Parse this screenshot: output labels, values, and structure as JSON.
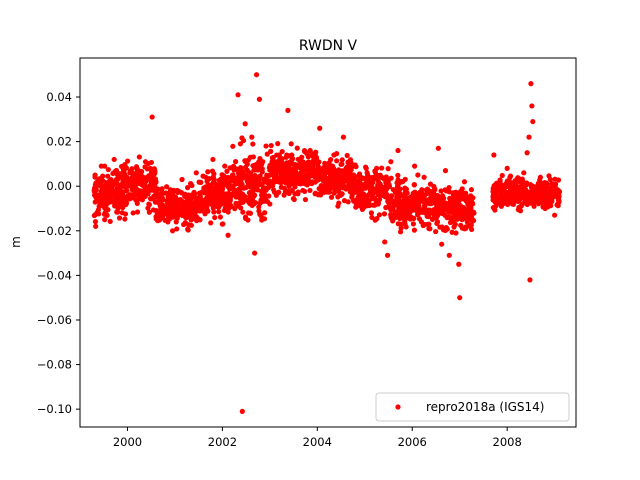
{
  "chart_data": {
    "type": "scatter",
    "title": "RWDN V",
    "xlabel": "",
    "ylabel": "m",
    "xlim": [
      1999.0,
      2009.45
    ],
    "ylim": [
      -0.108,
      0.0575
    ],
    "x_ticks": [
      2000,
      2002,
      2004,
      2006,
      2008
    ],
    "y_ticks": [
      0.04,
      0.02,
      0.0,
      -0.02,
      -0.04,
      -0.06,
      -0.08,
      -0.1
    ],
    "grid": false,
    "legend_position": "lower-right",
    "series": [
      {
        "name": "repro2018a (IGS14)",
        "color": "#ff0000",
        "marker": "circle",
        "points": [
          [
            1999.33,
            -0.018
          ],
          [
            1999.36,
            -0.012
          ],
          [
            1999.4,
            -0.004
          ],
          [
            1999.45,
            0.009
          ],
          [
            1999.52,
            -0.015
          ],
          [
            1999.6,
            0.001
          ],
          [
            1999.67,
            -0.007
          ],
          [
            1999.72,
            0.012
          ],
          [
            1999.8,
            -0.01
          ],
          [
            1999.88,
            0.004
          ],
          [
            1999.95,
            -0.006
          ],
          [
            2000.05,
            0.006
          ],
          [
            2000.12,
            -0.012
          ],
          [
            2000.2,
            0.008
          ],
          [
            2000.3,
            -0.003
          ],
          [
            2000.38,
            0.011
          ],
          [
            2000.45,
            -0.008
          ],
          [
            2000.52,
            0.031
          ],
          [
            2000.6,
            0.002
          ],
          [
            2000.68,
            -0.011
          ],
          [
            2000.75,
            -0.006
          ],
          [
            2000.85,
            -0.016
          ],
          [
            2000.95,
            -0.02
          ],
          [
            2001.05,
            -0.009
          ],
          [
            2001.15,
            0.003
          ],
          [
            2001.25,
            -0.014
          ],
          [
            2001.35,
            -0.004
          ],
          [
            2001.45,
            0.006
          ],
          [
            2001.55,
            -0.011
          ],
          [
            2001.65,
            0.004
          ],
          [
            2001.72,
            -0.002
          ],
          [
            2001.8,
            0.012
          ],
          [
            2001.9,
            -0.008
          ],
          [
            2002.0,
            -0.017
          ],
          [
            2002.05,
            0.009
          ],
          [
            2002.12,
            -0.022
          ],
          [
            2002.2,
            -0.004
          ],
          [
            2002.28,
            0.001
          ],
          [
            2002.33,
            0.041
          ],
          [
            2002.38,
            0.019
          ],
          [
            2002.42,
            -0.101
          ],
          [
            2002.48,
            0.028
          ],
          [
            2002.55,
            -0.012
          ],
          [
            2002.62,
            0.022
          ],
          [
            2002.68,
            -0.03
          ],
          [
            2002.72,
            0.05
          ],
          [
            2002.78,
            0.039
          ],
          [
            2002.85,
            0.011
          ],
          [
            2002.92,
            0.018
          ],
          [
            2003.0,
            -0.008
          ],
          [
            2003.1,
            0.006
          ],
          [
            2003.2,
            0.014
          ],
          [
            2003.3,
            -0.004
          ],
          [
            2003.38,
            0.034
          ],
          [
            2003.45,
            0.019
          ],
          [
            2003.55,
            0.002
          ],
          [
            2003.65,
            0.011
          ],
          [
            2003.75,
            -0.006
          ],
          [
            2003.85,
            0.016
          ],
          [
            2003.95,
            0.004
          ],
          [
            2004.05,
            0.026
          ],
          [
            2004.15,
            0.008
          ],
          [
            2004.25,
            -0.002
          ],
          [
            2004.35,
            0.014
          ],
          [
            2004.45,
            0.005
          ],
          [
            2004.55,
            0.022
          ],
          [
            2004.65,
            -0.007
          ],
          [
            2004.75,
            0.009
          ],
          [
            2004.85,
            0.0
          ],
          [
            2004.95,
            -0.009
          ],
          [
            2005.05,
            0.004
          ],
          [
            2005.15,
            -0.014
          ],
          [
            2005.25,
            0.008
          ],
          [
            2005.35,
            -0.004
          ],
          [
            2005.42,
            -0.025
          ],
          [
            2005.48,
            -0.031
          ],
          [
            2005.55,
            0.011
          ],
          [
            2005.62,
            -0.008
          ],
          [
            2005.7,
            0.016
          ],
          [
            2005.78,
            0.002
          ],
          [
            2005.85,
            -0.017
          ],
          [
            2005.95,
            -0.006
          ],
          [
            2006.05,
            0.009
          ],
          [
            2006.15,
            -0.012
          ],
          [
            2006.25,
            0.004
          ],
          [
            2006.35,
            -0.019
          ],
          [
            2006.45,
            -0.003
          ],
          [
            2006.55,
            0.017
          ],
          [
            2006.62,
            -0.026
          ],
          [
            2006.7,
            0.007
          ],
          [
            2006.78,
            -0.031
          ],
          [
            2006.85,
            -0.011
          ],
          [
            2006.92,
            -0.021
          ],
          [
            2006.98,
            -0.035
          ],
          [
            2007.0,
            -0.05
          ],
          [
            2007.05,
            -0.015
          ],
          [
            2007.1,
            0.002
          ],
          [
            2007.2,
            -0.006
          ],
          [
            2007.3,
            -0.012
          ],
          [
            2007.72,
            0.014
          ],
          [
            2007.78,
            -0.008
          ],
          [
            2007.85,
            0.002
          ],
          [
            2007.92,
            -0.004
          ],
          [
            2008.0,
            0.008
          ],
          [
            2008.1,
            -0.006
          ],
          [
            2008.2,
            0.003
          ],
          [
            2008.28,
            -0.011
          ],
          [
            2008.35,
            0.006
          ],
          [
            2008.42,
            0.015
          ],
          [
            2008.46,
            0.022
          ],
          [
            2008.5,
            0.046
          ],
          [
            2008.52,
            0.036
          ],
          [
            2008.54,
            0.029
          ],
          [
            2008.48,
            -0.042
          ],
          [
            2008.6,
            -0.005
          ],
          [
            2008.7,
            0.004
          ],
          [
            2008.8,
            -0.01
          ],
          [
            2008.9,
            -0.002
          ],
          [
            2009.0,
            -0.013
          ],
          [
            2009.08,
            -0.006
          ]
        ],
        "bands": [
          {
            "x": [
              1999.3,
              2000.0
            ],
            "center": -0.003,
            "spread": 0.009
          },
          {
            "x": [
              2000.0,
              2000.6
            ],
            "center": 0.0,
            "spread": 0.009
          },
          {
            "x": [
              2000.6,
              2001.5
            ],
            "center": -0.009,
            "spread": 0.008
          },
          {
            "x": [
              2001.5,
              2002.2
            ],
            "center": -0.004,
            "spread": 0.009
          },
          {
            "x": [
              2002.2,
              2003.0
            ],
            "center": 0.0,
            "spread": 0.013
          },
          {
            "x": [
              2003.0,
              2004.0
            ],
            "center": 0.006,
            "spread": 0.009
          },
          {
            "x": [
              2004.0,
              2004.8
            ],
            "center": 0.004,
            "spread": 0.009
          },
          {
            "x": [
              2004.8,
              2005.5
            ],
            "center": -0.002,
            "spread": 0.009
          },
          {
            "x": [
              2005.5,
              2006.5
            ],
            "center": -0.008,
            "spread": 0.009
          },
          {
            "x": [
              2006.5,
              2007.3
            ],
            "center": -0.01,
            "spread": 0.009
          },
          {
            "x": [
              2007.7,
              2009.1
            ],
            "center": -0.003,
            "spread": 0.006
          }
        ]
      }
    ]
  }
}
